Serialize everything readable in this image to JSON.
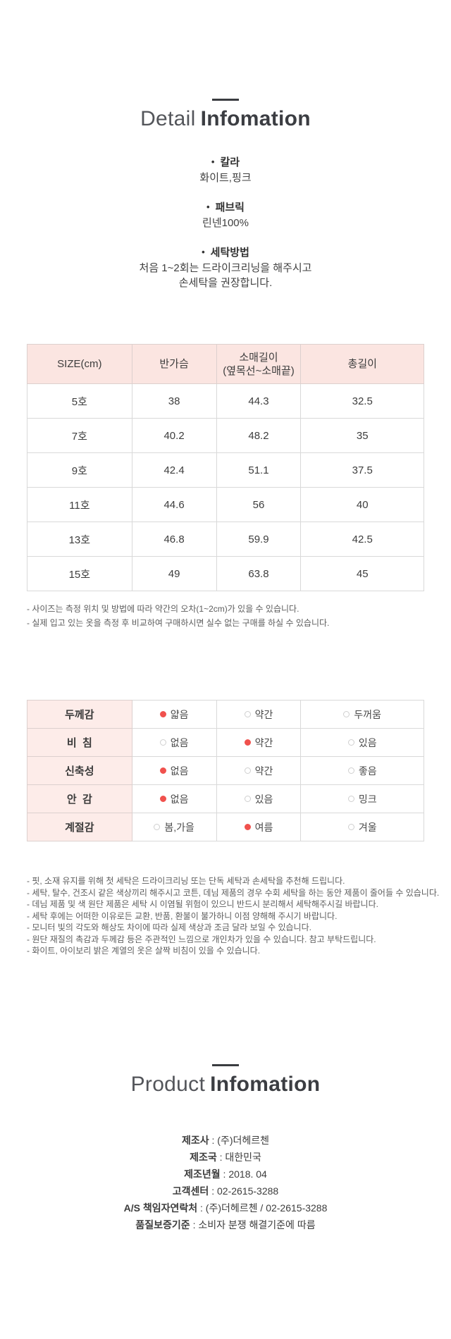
{
  "colors": {
    "header_pink_bg": "#fbe5e1",
    "label_pink_bg": "#fdece9",
    "radio_selected_red": "#f0514d",
    "table_border": "#d9d9d9",
    "title_text": "#3b3d42",
    "note_text": "#5d5d5d"
  },
  "detail": {
    "title": {
      "light": "Detail",
      "bold": "Infomation"
    },
    "bullet": "•",
    "specs": [
      {
        "label": "칼라",
        "lines": [
          "화이트,핑크"
        ]
      },
      {
        "label": "패브릭",
        "lines": [
          "린넨100%"
        ]
      },
      {
        "label": "세탁방법",
        "lines": [
          "처음 1~2회는 드라이크리닝을 해주시고",
          "손세탁을 권장합니다."
        ]
      }
    ],
    "size_table": {
      "headers": [
        "SIZE(cm)",
        "반가슴",
        "소매길이\n(옆목선~소매끝)",
        "총길이"
      ],
      "rows": [
        [
          "5호",
          "38",
          "44.3",
          "32.5"
        ],
        [
          "7호",
          "40.2",
          "48.2",
          "35"
        ],
        [
          "9호",
          "42.4",
          "51.1",
          "37.5"
        ],
        [
          "11호",
          "44.6",
          "56",
          "40"
        ],
        [
          "13호",
          "46.8",
          "59.9",
          "42.5"
        ],
        [
          "15호",
          "49",
          "63.8",
          "45"
        ]
      ]
    },
    "size_notes": [
      "- 사이즈는 측정 위치 및 방법에 따라 약간의 오차(1~2cm)가 있을 수 있습니다.",
      "- 실제 입고 있는 옷을 측정 후 비교하여 구매하시면 실수 없는 구매를 하실 수 있습니다."
    ],
    "attributes": {
      "rows": [
        {
          "label": "두께감",
          "options": [
            {
              "text": "얇음",
              "selected": true
            },
            {
              "text": "약간",
              "selected": false
            },
            {
              "text": "두꺼움",
              "selected": false
            }
          ]
        },
        {
          "label": "비  침",
          "options": [
            {
              "text": "없음",
              "selected": false
            },
            {
              "text": "약간",
              "selected": true
            },
            {
              "text": "있음",
              "selected": false
            }
          ]
        },
        {
          "label": "신축성",
          "options": [
            {
              "text": "없음",
              "selected": true
            },
            {
              "text": "약간",
              "selected": false
            },
            {
              "text": "좋음",
              "selected": false
            }
          ]
        },
        {
          "label": "안  감",
          "options": [
            {
              "text": "없음",
              "selected": true
            },
            {
              "text": "있음",
              "selected": false
            },
            {
              "text": "밍크",
              "selected": false
            }
          ]
        },
        {
          "label": "계절감",
          "options": [
            {
              "text": "봄,가을",
              "selected": false
            },
            {
              "text": "여름",
              "selected": true
            },
            {
              "text": "겨울",
              "selected": false
            }
          ]
        }
      ]
    },
    "care_notes": [
      "- 핏, 소재 유지를 위해 첫 세탁은 드라이크리닝 또는 단독 세탁과 손세탁을 추천해 드립니다.",
      "- 세탁, 탈수, 건조시 같은 색상끼리 해주시고 코튼, 데님 제품의 경우 수회 세탁을 하는 동안 제품이 줄어들 수 있습니다.",
      "- 데님 제품 및 색 원단 제품은 세탁 시 이염될 위험이 있으니 반드시 분리해서 세탁해주시길 바랍니다.",
      "- 세탁 후에는 어떠한 이유로든 교환, 반품, 환불이 불가하니 이점 양해해 주시기 바랍니다.",
      "- 모니터 빛의 각도와 해상도 차이에 따라 실제 색상과 조금 달라 보일 수 있습니다.",
      "- 원단 재질의 촉감과 두께감 등은 주관적인 느낌으로 개인차가 있을 수 있습니다. 참고 부탁드립니다.",
      "- 화이트, 아이보리 밝은 계열의 옷은 살짝 비침이 있을 수 있습니다."
    ]
  },
  "product": {
    "title": {
      "light": "Product",
      "bold": "Infomation"
    },
    "separator": " : ",
    "info": [
      {
        "label": "제조사",
        "value": "(주)더헤르첸"
      },
      {
        "label": "제조국",
        "value": "대한민국"
      },
      {
        "label": "제조년월",
        "value": "2018. 04"
      },
      {
        "label": "고객센터",
        "value": "02-2615-3288"
      },
      {
        "label": "A/S 책임자연락처",
        "value": "(주)더헤르첸 / 02-2615-3288"
      },
      {
        "label": "품질보증기준",
        "value": "소비자 분쟁 해결기준에 따름"
      }
    ]
  }
}
